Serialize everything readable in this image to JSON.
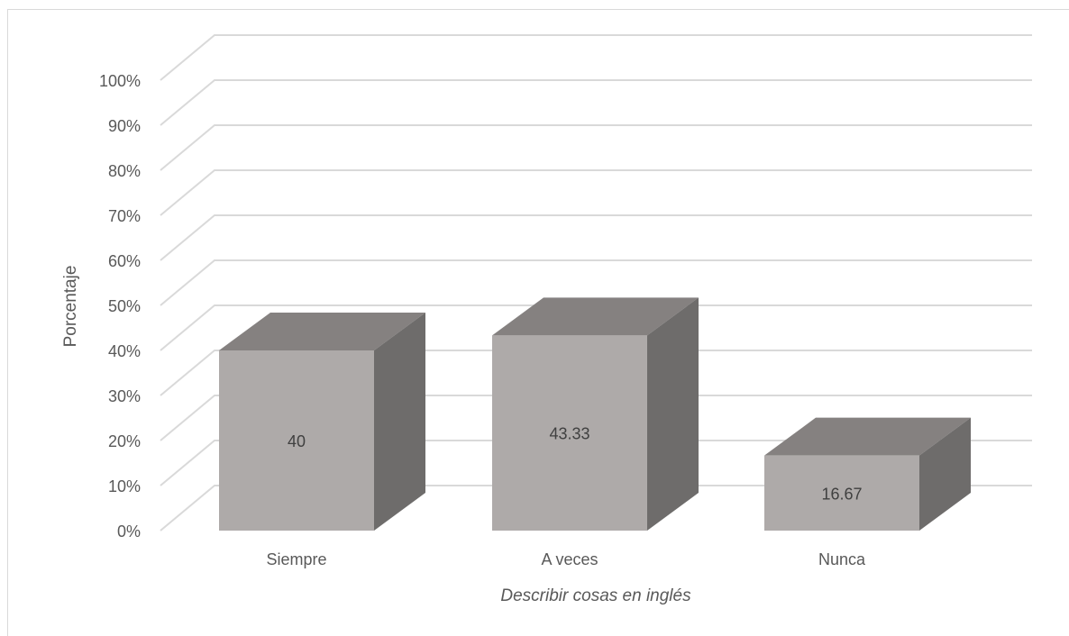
{
  "chart_data": {
    "type": "bar",
    "style": "3d-column",
    "title": "",
    "categories": [
      "Siempre",
      "A veces",
      "Nunca"
    ],
    "values": [
      40,
      43.33,
      16.67
    ],
    "data_labels": [
      "40",
      "43.33",
      "16.67"
    ],
    "xlabel": "Describir cosas en inglés",
    "ylabel": "Porcentaje",
    "ylim": [
      0,
      100
    ],
    "y_ticks": [
      "0%",
      "10%",
      "20%",
      "30%",
      "40%",
      "50%",
      "60%",
      "70%",
      "80%",
      "90%",
      "100%"
    ],
    "grid": true,
    "legend": "none",
    "colors": {
      "bar_front": "#aeaaa9",
      "bar_top": "#858180",
      "bar_side": "#6e6c6b",
      "gridline": "#d9d9d9"
    }
  }
}
